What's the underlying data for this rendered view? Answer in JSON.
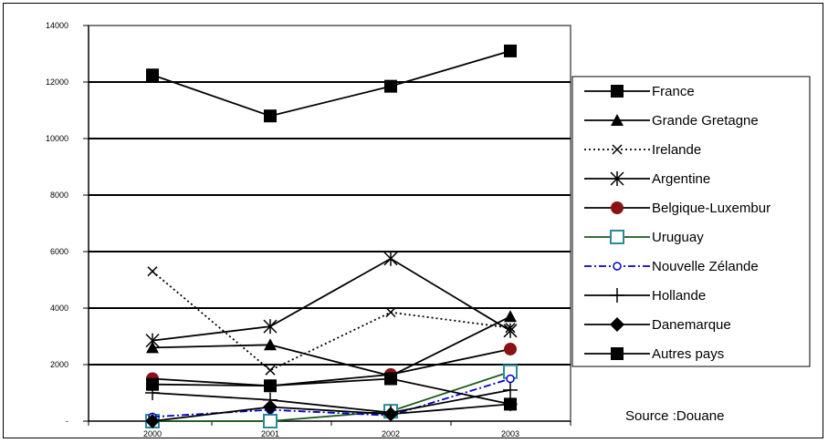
{
  "chart_data": {
    "type": "line",
    "categories": [
      "2000",
      "2001",
      "2002",
      "2003"
    ],
    "ylim": [
      0,
      14000
    ],
    "y_ticks": [
      "-",
      "2000",
      "4000",
      "6000",
      "8000",
      "10000",
      "12000",
      "14000"
    ],
    "grid": true,
    "legend_position": "right",
    "source": "Source :Douane",
    "series": [
      {
        "name": "France",
        "values": [
          12250,
          10800,
          11850,
          13100
        ],
        "color": "#000000",
        "dash": "solid",
        "marker": "square"
      },
      {
        "name": "Grande Gretagne",
        "values": [
          2600,
          2700,
          1600,
          3700
        ],
        "color": "#000000",
        "dash": "solid",
        "marker": "triangle"
      },
      {
        "name": "Irelande",
        "values": [
          5300,
          1800,
          3850,
          3300
        ],
        "color": "#000000",
        "dash": "dotted",
        "marker": "x"
      },
      {
        "name": "Argentine",
        "values": [
          2850,
          3350,
          5750,
          3200
        ],
        "color": "#000000",
        "dash": "solid",
        "marker": "asterisk"
      },
      {
        "name": "Belgique-Luxembur",
        "values": [
          1500,
          1250,
          1650,
          2550
        ],
        "color": "#000000",
        "dash": "solid",
        "marker": "circle-red"
      },
      {
        "name": "Uruguay",
        "values": [
          0,
          0,
          350,
          1750
        ],
        "color": "#1a5c1a",
        "dash": "solid",
        "marker": "square-open"
      },
      {
        "name": "Nouvelle Zélande",
        "values": [
          150,
          400,
          200,
          1500
        ],
        "color": "#0000cc",
        "dash": "dashdot",
        "marker": "circle-open"
      },
      {
        "name": "Hollande",
        "values": [
          1000,
          750,
          300,
          1100
        ],
        "color": "#000000",
        "dash": "solid",
        "marker": "plus"
      },
      {
        "name": "Danemarque",
        "values": [
          0,
          500,
          250,
          600
        ],
        "color": "#000000",
        "dash": "solid",
        "marker": "diamond"
      },
      {
        "name": "Autres pays",
        "values": [
          1300,
          1250,
          1500,
          600
        ],
        "color": "#000000",
        "dash": "solid",
        "marker": "square"
      }
    ]
  }
}
